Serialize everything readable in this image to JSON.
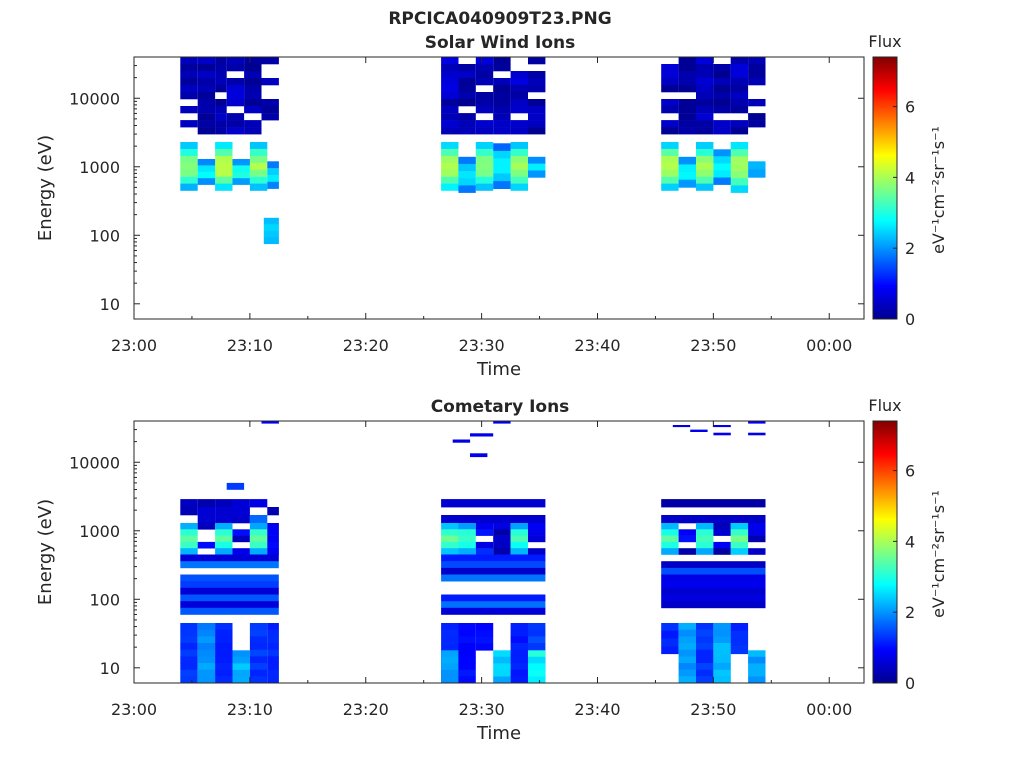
{
  "figure": {
    "title": "RPCICA040909T23.PNG"
  },
  "chart_data": [
    {
      "type": "heatmap",
      "title": "Solar Wind Ions",
      "xlabel": "Time",
      "ylabel": "Energy (eV)",
      "x_scale": "time",
      "y_scale": "log",
      "xlim": [
        "23:00",
        "00:03"
      ],
      "ylim": [
        6,
        40000
      ],
      "x_ticks": [
        "23:00",
        "23:10",
        "23:20",
        "23:30",
        "23:40",
        "23:50",
        "00:00"
      ],
      "y_ticks": [
        10,
        100,
        1000,
        10000
      ],
      "y_tick_labels": [
        "10",
        "100",
        "1000",
        "10000"
      ],
      "colorbar": {
        "label": "Flux",
        "unit": "eV⁻¹cm⁻²sr⁻¹s⁻¹",
        "min": 0,
        "max": 7.4,
        "ticks": [
          0,
          2,
          4,
          6
        ],
        "colormap": "jet"
      },
      "grid": false,
      "blocks": [
        {
          "t0": "23:04",
          "t1": "23:05.5",
          "e0": 3000,
          "e1": 40000,
          "flux": 0.4,
          "pattern": "stripes"
        },
        {
          "t0": "23:05.5",
          "t1": "23:07",
          "e0": 3000,
          "e1": 40000,
          "flux": 0.3,
          "pattern": "stripes"
        },
        {
          "t0": "23:07",
          "t1": "23:08",
          "e0": 3000,
          "e1": 40000,
          "flux": 0.3,
          "pattern": "stripes"
        },
        {
          "t0": "23:08",
          "t1": "23:09.5",
          "e0": 3000,
          "e1": 40000,
          "flux": 0.4,
          "pattern": "stripes"
        },
        {
          "t0": "23:09.5",
          "t1": "23:11",
          "e0": 3000,
          "e1": 40000,
          "flux": 0.3,
          "pattern": "stripes"
        },
        {
          "t0": "23:11",
          "t1": "23:12.5",
          "e0": 3000,
          "e1": 40000,
          "flux": 0.4,
          "pattern": "stripes"
        },
        {
          "t0": "23:04",
          "t1": "23:05.5",
          "e0": 450,
          "e1": 2300,
          "flux": 3.5,
          "pattern": "peak"
        },
        {
          "t0": "23:07",
          "t1": "23:08.5",
          "e0": 450,
          "e1": 2300,
          "flux": 3.8,
          "pattern": "peak"
        },
        {
          "t0": "23:10",
          "t1": "23:11.5",
          "e0": 450,
          "e1": 2300,
          "flux": 3.6,
          "pattern": "peak"
        },
        {
          "t0": "23:05.5",
          "t1": "23:07",
          "e0": 550,
          "e1": 1300,
          "flux": 2.6,
          "pattern": "peak"
        },
        {
          "t0": "23:08.5",
          "t1": "23:10",
          "e0": 550,
          "e1": 1300,
          "flux": 2.7,
          "pattern": "peak"
        },
        {
          "t0": "23:11.5",
          "t1": "23:12.5",
          "e0": 480,
          "e1": 1200,
          "flux": 2.4,
          "pattern": "peak"
        },
        {
          "t0": "23:11.2",
          "t1": "23:12.5",
          "e0": 75,
          "e1": 180,
          "flux": 2.3,
          "pattern": "solid"
        },
        {
          "t0": "23:26.5",
          "t1": "23:28",
          "e0": 3000,
          "e1": 40000,
          "flux": 0.4,
          "pattern": "stripes"
        },
        {
          "t0": "23:28",
          "t1": "23:29.5",
          "e0": 3000,
          "e1": 40000,
          "flux": 0.3,
          "pattern": "stripes"
        },
        {
          "t0": "23:29.5",
          "t1": "23:31",
          "e0": 3000,
          "e1": 40000,
          "flux": 0.4,
          "pattern": "stripes"
        },
        {
          "t0": "23:31",
          "t1": "23:32.5",
          "e0": 3000,
          "e1": 40000,
          "flux": 0.3,
          "pattern": "stripes"
        },
        {
          "t0": "23:32.5",
          "t1": "23:34",
          "e0": 3000,
          "e1": 40000,
          "flux": 0.4,
          "pattern": "stripes"
        },
        {
          "t0": "23:34",
          "t1": "23:35.5",
          "e0": 3000,
          "e1": 40000,
          "flux": 0.3,
          "pattern": "stripes"
        },
        {
          "t0": "23:26.5",
          "t1": "23:28",
          "e0": 450,
          "e1": 2300,
          "flux": 3.8,
          "pattern": "peak"
        },
        {
          "t0": "23:29.5",
          "t1": "23:31",
          "e0": 450,
          "e1": 2300,
          "flux": 3.5,
          "pattern": "peak"
        },
        {
          "t0": "23:32.5",
          "t1": "23:34",
          "e0": 450,
          "e1": 2300,
          "flux": 3.6,
          "pattern": "peak"
        },
        {
          "t0": "23:28",
          "t1": "23:29.5",
          "e0": 420,
          "e1": 1400,
          "flux": 2.5,
          "pattern": "peak"
        },
        {
          "t0": "23:31",
          "t1": "23:32.5",
          "e0": 480,
          "e1": 2200,
          "flux": 2.6,
          "pattern": "peak"
        },
        {
          "t0": "23:34",
          "t1": "23:35.5",
          "e0": 700,
          "e1": 1400,
          "flux": 2.3,
          "pattern": "peak"
        },
        {
          "t0": "23:45.5",
          "t1": "23:47",
          "e0": 3000,
          "e1": 40000,
          "flux": 0.4,
          "pattern": "stripes"
        },
        {
          "t0": "23:47",
          "t1": "23:48.5",
          "e0": 3000,
          "e1": 40000,
          "flux": 0.3,
          "pattern": "stripes"
        },
        {
          "t0": "23:48.5",
          "t1": "23:50",
          "e0": 3000,
          "e1": 40000,
          "flux": 0.4,
          "pattern": "stripes"
        },
        {
          "t0": "23:50",
          "t1": "23:51.5",
          "e0": 3000,
          "e1": 40000,
          "flux": 0.3,
          "pattern": "stripes"
        },
        {
          "t0": "23:51.5",
          "t1": "23:53",
          "e0": 3000,
          "e1": 40000,
          "flux": 0.4,
          "pattern": "stripes"
        },
        {
          "t0": "23:53",
          "t1": "23:54.5",
          "e0": 3000,
          "e1": 40000,
          "flux": 0.3,
          "pattern": "stripes"
        },
        {
          "t0": "23:45.5",
          "t1": "23:47",
          "e0": 450,
          "e1": 2300,
          "flux": 3.8,
          "pattern": "peak"
        },
        {
          "t0": "23:48.5",
          "t1": "23:50",
          "e0": 450,
          "e1": 2300,
          "flux": 3.6,
          "pattern": "peak"
        },
        {
          "t0": "23:51.5",
          "t1": "23:53",
          "e0": 420,
          "e1": 2300,
          "flux": 3.7,
          "pattern": "peak"
        },
        {
          "t0": "23:47",
          "t1": "23:48.5",
          "e0": 500,
          "e1": 1400,
          "flux": 2.5,
          "pattern": "peak"
        },
        {
          "t0": "23:50",
          "t1": "23:51.5",
          "e0": 550,
          "e1": 1800,
          "flux": 2.6,
          "pattern": "peak"
        },
        {
          "t0": "23:53",
          "t1": "23:54.5",
          "e0": 700,
          "e1": 1200,
          "flux": 2.3,
          "pattern": "peak"
        }
      ]
    },
    {
      "type": "heatmap",
      "title": "Cometary Ions",
      "xlabel": "Time",
      "ylabel": "Energy (eV)",
      "x_scale": "time",
      "y_scale": "log",
      "xlim": [
        "23:00",
        "00:03"
      ],
      "ylim": [
        6,
        40000
      ],
      "x_ticks": [
        "23:00",
        "23:10",
        "23:20",
        "23:30",
        "23:40",
        "23:50",
        "00:00"
      ],
      "y_ticks": [
        10,
        100,
        1000,
        10000
      ],
      "y_tick_labels": [
        "10",
        "100",
        "1000",
        "10000"
      ],
      "colorbar": {
        "label": "Flux",
        "unit": "eV⁻¹cm⁻²sr⁻¹s⁻¹",
        "min": 0,
        "max": 7.4,
        "ticks": [
          0,
          2,
          4,
          6
        ],
        "colormap": "jet"
      },
      "grid": false,
      "blocks": [
        {
          "t0": "23:04",
          "t1": "23:05.5",
          "e0": 1300,
          "e1": 2900,
          "flux": 0.5,
          "pattern": "stripes"
        },
        {
          "t0": "23:05.5",
          "t1": "23:07",
          "e0": 1300,
          "e1": 2900,
          "flux": 0.4,
          "pattern": "stripes"
        },
        {
          "t0": "23:07",
          "t1": "23:08.5",
          "e0": 1300,
          "e1": 2900,
          "flux": 0.5,
          "pattern": "stripes"
        },
        {
          "t0": "23:08.5",
          "t1": "23:10",
          "e0": 1300,
          "e1": 2900,
          "flux": 0.4,
          "pattern": "stripes"
        },
        {
          "t0": "23:10",
          "t1": "23:11.5",
          "e0": 1300,
          "e1": 2900,
          "flux": 1.6,
          "pattern": "stripes"
        },
        {
          "t0": "23:11.5",
          "t1": "23:12.5",
          "e0": 1300,
          "e1": 2900,
          "flux": 0.4,
          "pattern": "stripes"
        },
        {
          "t0": "23:04",
          "t1": "23:05.5",
          "e0": 450,
          "e1": 1300,
          "flux": 3.2,
          "pattern": "peak"
        },
        {
          "t0": "23:05.5",
          "t1": "23:07",
          "e0": 450,
          "e1": 1300,
          "flux": 0.8,
          "pattern": "stripes"
        },
        {
          "t0": "23:07",
          "t1": "23:08.5",
          "e0": 450,
          "e1": 1300,
          "flux": 3.0,
          "pattern": "peak"
        },
        {
          "t0": "23:08.5",
          "t1": "23:10",
          "e0": 450,
          "e1": 1300,
          "flux": 0.6,
          "pattern": "stripes"
        },
        {
          "t0": "23:10",
          "t1": "23:11.5",
          "e0": 450,
          "e1": 1300,
          "flux": 3.1,
          "pattern": "peak"
        },
        {
          "t0": "23:11.5",
          "t1": "23:12.5",
          "e0": 450,
          "e1": 1300,
          "flux": 0.6,
          "pattern": "stripes"
        },
        {
          "t0": "23:08",
          "t1": "23:09.5",
          "e0": 4000,
          "e1": 5000,
          "flux": 1.5,
          "pattern": "solid"
        },
        {
          "t0": "23:04",
          "t1": "23:12.5",
          "e0": 60,
          "e1": 450,
          "flux": 1.0,
          "pattern": "mixed"
        },
        {
          "t0": "23:04",
          "t1": "23:05.5",
          "e0": 6,
          "e1": 45,
          "flux": 1.3,
          "pattern": "solid"
        },
        {
          "t0": "23:05.5",
          "t1": "23:07",
          "e0": 6,
          "e1": 45,
          "flux": 2.0,
          "pattern": "solid"
        },
        {
          "t0": "23:07",
          "t1": "23:08.5",
          "e0": 6,
          "e1": 45,
          "flux": 1.2,
          "pattern": "solid"
        },
        {
          "t0": "23:08.5",
          "t1": "23:10",
          "e0": 6,
          "e1": 18,
          "flux": 2.2,
          "pattern": "solid"
        },
        {
          "t0": "23:10",
          "t1": "23:11.5",
          "e0": 6,
          "e1": 45,
          "flux": 1.3,
          "pattern": "solid"
        },
        {
          "t0": "23:11.5",
          "t1": "23:12.5",
          "e0": 6,
          "e1": 45,
          "flux": 1.2,
          "pattern": "solid"
        },
        {
          "t0": "23:11",
          "t1": "23:12.5",
          "e0": 37000,
          "e1": 40000,
          "flux": 0.8,
          "pattern": "solid"
        },
        {
          "t0": "23:26.5",
          "t1": "23:35.5",
          "e0": 1300,
          "e1": 2900,
          "flux": 0.4,
          "pattern": "stripes"
        },
        {
          "t0": "23:26.5",
          "t1": "23:28",
          "e0": 450,
          "e1": 1300,
          "flux": 3.1,
          "pattern": "peak"
        },
        {
          "t0": "23:28",
          "t1": "23:29.5",
          "e0": 450,
          "e1": 1300,
          "flux": 3.0,
          "pattern": "peak"
        },
        {
          "t0": "23:29.5",
          "t1": "23:31",
          "e0": 450,
          "e1": 1300,
          "flux": 0.9,
          "pattern": "stripes"
        },
        {
          "t0": "23:31",
          "t1": "23:32.5",
          "e0": 450,
          "e1": 1300,
          "flux": 0.5,
          "pattern": "stripes"
        },
        {
          "t0": "23:32.5",
          "t1": "23:34",
          "e0": 450,
          "e1": 1300,
          "flux": 3.0,
          "pattern": "peak"
        },
        {
          "t0": "23:34",
          "t1": "23:35.5",
          "e0": 450,
          "e1": 1300,
          "flux": 0.5,
          "pattern": "stripes"
        },
        {
          "t0": "23:26.5",
          "t1": "23:35.5",
          "e0": 60,
          "e1": 450,
          "flux": 1.0,
          "pattern": "mixed"
        },
        {
          "t0": "23:26.5",
          "t1": "23:28",
          "e0": 6,
          "e1": 45,
          "flux": 1.2,
          "pattern": "solid"
        },
        {
          "t0": "23:26.5",
          "t1": "23:28",
          "e0": 6,
          "e1": 18,
          "flux": 2.1,
          "pattern": "solid"
        },
        {
          "t0": "23:28",
          "t1": "23:29.5",
          "e0": 6,
          "e1": 45,
          "flux": 1.0,
          "pattern": "solid"
        },
        {
          "t0": "23:29.5",
          "t1": "23:31",
          "e0": 18,
          "e1": 45,
          "flux": 1.0,
          "pattern": "solid"
        },
        {
          "t0": "23:31",
          "t1": "23:32.5",
          "e0": 6,
          "e1": 18,
          "flux": 2.3,
          "pattern": "solid"
        },
        {
          "t0": "23:32.5",
          "t1": "23:34",
          "e0": 6,
          "e1": 45,
          "flux": 1.1,
          "pattern": "solid"
        },
        {
          "t0": "23:34",
          "t1": "23:35.5",
          "e0": 6,
          "e1": 45,
          "flux": 1.4,
          "pattern": "solid"
        },
        {
          "t0": "23:34",
          "t1": "23:35.5",
          "e0": 6,
          "e1": 18,
          "flux": 2.8,
          "pattern": "solid"
        },
        {
          "t0": "23:27.5",
          "t1": "23:29",
          "e0": 19500,
          "e1": 21500,
          "flux": 0.8,
          "pattern": "solid"
        },
        {
          "t0": "23:29",
          "t1": "23:31",
          "e0": 24000,
          "e1": 26500,
          "flux": 0.8,
          "pattern": "solid"
        },
        {
          "t0": "23:31",
          "t1": "23:32.5",
          "e0": 37000,
          "e1": 40000,
          "flux": 0.8,
          "pattern": "solid"
        },
        {
          "t0": "23:29",
          "t1": "23:30.5",
          "e0": 12000,
          "e1": 13500,
          "flux": 0.8,
          "pattern": "solid"
        },
        {
          "t0": "23:45.5",
          "t1": "23:54.5",
          "e0": 1300,
          "e1": 2900,
          "flux": 0.4,
          "pattern": "stripes"
        },
        {
          "t0": "23:45.5",
          "t1": "23:47",
          "e0": 450,
          "e1": 1300,
          "flux": 3.1,
          "pattern": "peak"
        },
        {
          "t0": "23:47",
          "t1": "23:48.5",
          "e0": 450,
          "e1": 1300,
          "flux": 0.6,
          "pattern": "stripes"
        },
        {
          "t0": "23:48.5",
          "t1": "23:50",
          "e0": 450,
          "e1": 1300,
          "flux": 3.0,
          "pattern": "peak"
        },
        {
          "t0": "23:50",
          "t1": "23:51.5",
          "e0": 450,
          "e1": 1300,
          "flux": 0.6,
          "pattern": "stripes"
        },
        {
          "t0": "23:51.5",
          "t1": "23:53",
          "e0": 450,
          "e1": 1300,
          "flux": 3.2,
          "pattern": "peak"
        },
        {
          "t0": "23:53",
          "t1": "23:54.5",
          "e0": 450,
          "e1": 1300,
          "flux": 0.5,
          "pattern": "stripes"
        },
        {
          "t0": "23:45.5",
          "t1": "23:54.5",
          "e0": 60,
          "e1": 450,
          "flux": 1.0,
          "pattern": "mixed"
        },
        {
          "t0": "23:45.5",
          "t1": "23:47",
          "e0": 16,
          "e1": 45,
          "flux": 1.2,
          "pattern": "solid"
        },
        {
          "t0": "23:47",
          "t1": "23:48.5",
          "e0": 6,
          "e1": 45,
          "flux": 2.0,
          "pattern": "solid"
        },
        {
          "t0": "23:48.5",
          "t1": "23:50",
          "e0": 6,
          "e1": 45,
          "flux": 1.3,
          "pattern": "solid"
        },
        {
          "t0": "23:50",
          "t1": "23:51.5",
          "e0": 6,
          "e1": 45,
          "flux": 2.2,
          "pattern": "solid"
        },
        {
          "t0": "23:51.5",
          "t1": "23:53",
          "e0": 16,
          "e1": 45,
          "flux": 1.2,
          "pattern": "solid"
        },
        {
          "t0": "23:53",
          "t1": "23:54.5",
          "e0": 6,
          "e1": 18,
          "flux": 2.1,
          "pattern": "solid"
        },
        {
          "t0": "23:46.5",
          "t1": "23:48",
          "e0": 33000,
          "e1": 35000,
          "flux": 0.8,
          "pattern": "solid"
        },
        {
          "t0": "23:48",
          "t1": "23:49.5",
          "e0": 28000,
          "e1": 30000,
          "flux": 0.8,
          "pattern": "solid"
        },
        {
          "t0": "23:50",
          "t1": "23:51.5",
          "e0": 33000,
          "e1": 35000,
          "flux": 0.8,
          "pattern": "solid"
        },
        {
          "t0": "23:50",
          "t1": "23:51.5",
          "e0": 25000,
          "e1": 27000,
          "flux": 0.8,
          "pattern": "solid"
        },
        {
          "t0": "23:53",
          "t1": "23:54.5",
          "e0": 37000,
          "e1": 40000,
          "flux": 0.8,
          "pattern": "solid"
        },
        {
          "t0": "23:53",
          "t1": "23:54.5",
          "e0": 25000,
          "e1": 27000,
          "flux": 0.8,
          "pattern": "solid"
        }
      ]
    }
  ]
}
